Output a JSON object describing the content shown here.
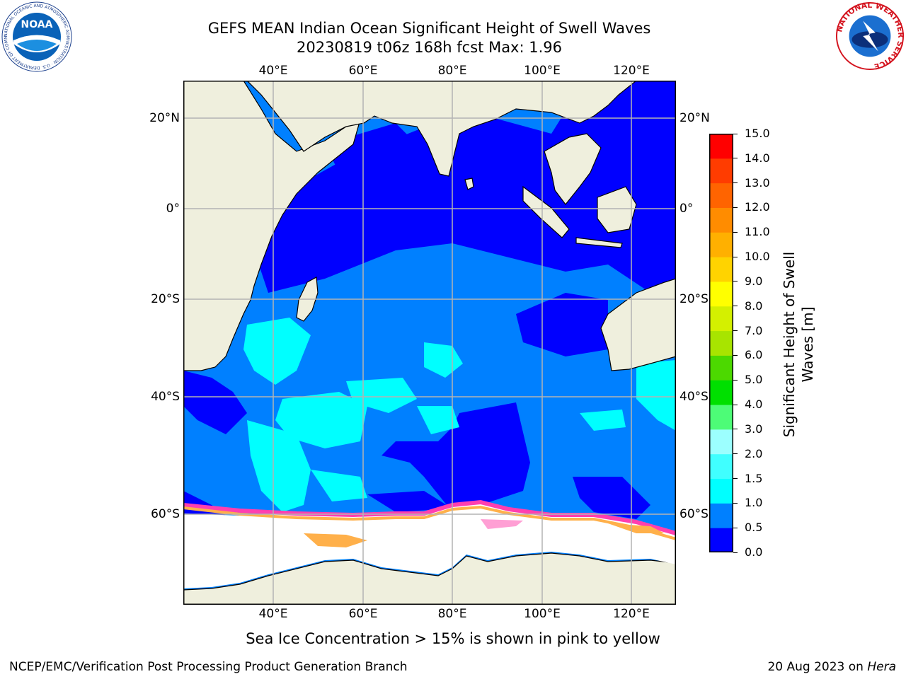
{
  "title": {
    "line1": "GEFS MEAN Indian Ocean Significant Height of Swell Waves",
    "line2": "20230819 t06z 168h fcst   Max: 1.96"
  },
  "map": {
    "lon_labels": [
      "40°E",
      "60°E",
      "80°E",
      "100°E",
      "120°E"
    ],
    "lat_labels": [
      "20°N",
      "0°",
      "20°S",
      "40°S",
      "60°S"
    ]
  },
  "colorbar": {
    "label": "Significant Height of Swell Waves [m]",
    "ticks": [
      "0.0",
      "0.5",
      "1.0",
      "1.5",
      "2.0",
      "3.0",
      "4.0",
      "5.0",
      "6.0",
      "7.0",
      "8.0",
      "9.0",
      "10.0",
      "11.0",
      "12.0",
      "13.0",
      "14.0",
      "15.0"
    ],
    "colors": [
      "#0000ff",
      "#0080ff",
      "#00ffff",
      "#40ffff",
      "#9cffff",
      "#4dfc77",
      "#00e000",
      "#4cd900",
      "#a8e400",
      "#d4f000",
      "#ffff00",
      "#ffd300",
      "#ffb000",
      "#ff8c00",
      "#ff6400",
      "#ff3c00",
      "#ff0000"
    ]
  },
  "note": "Sea Ice Concentration > 15% is shown in pink to yellow",
  "footer": {
    "left": "NCEP/EMC/Verification Post Processing Product Generation Branch",
    "right_prefix": "20 Aug 2023 on ",
    "right_emph": "Hera"
  },
  "logos": {
    "noaa_text": "NOAA",
    "noaa_ring": "NATIONAL OCEANIC AND ATMOSPHERIC ADMINISTRATION · U.S. DEPARTMENT OF COMMERCE",
    "nws_ring": "NATIONAL WEATHER SERVICE"
  }
}
